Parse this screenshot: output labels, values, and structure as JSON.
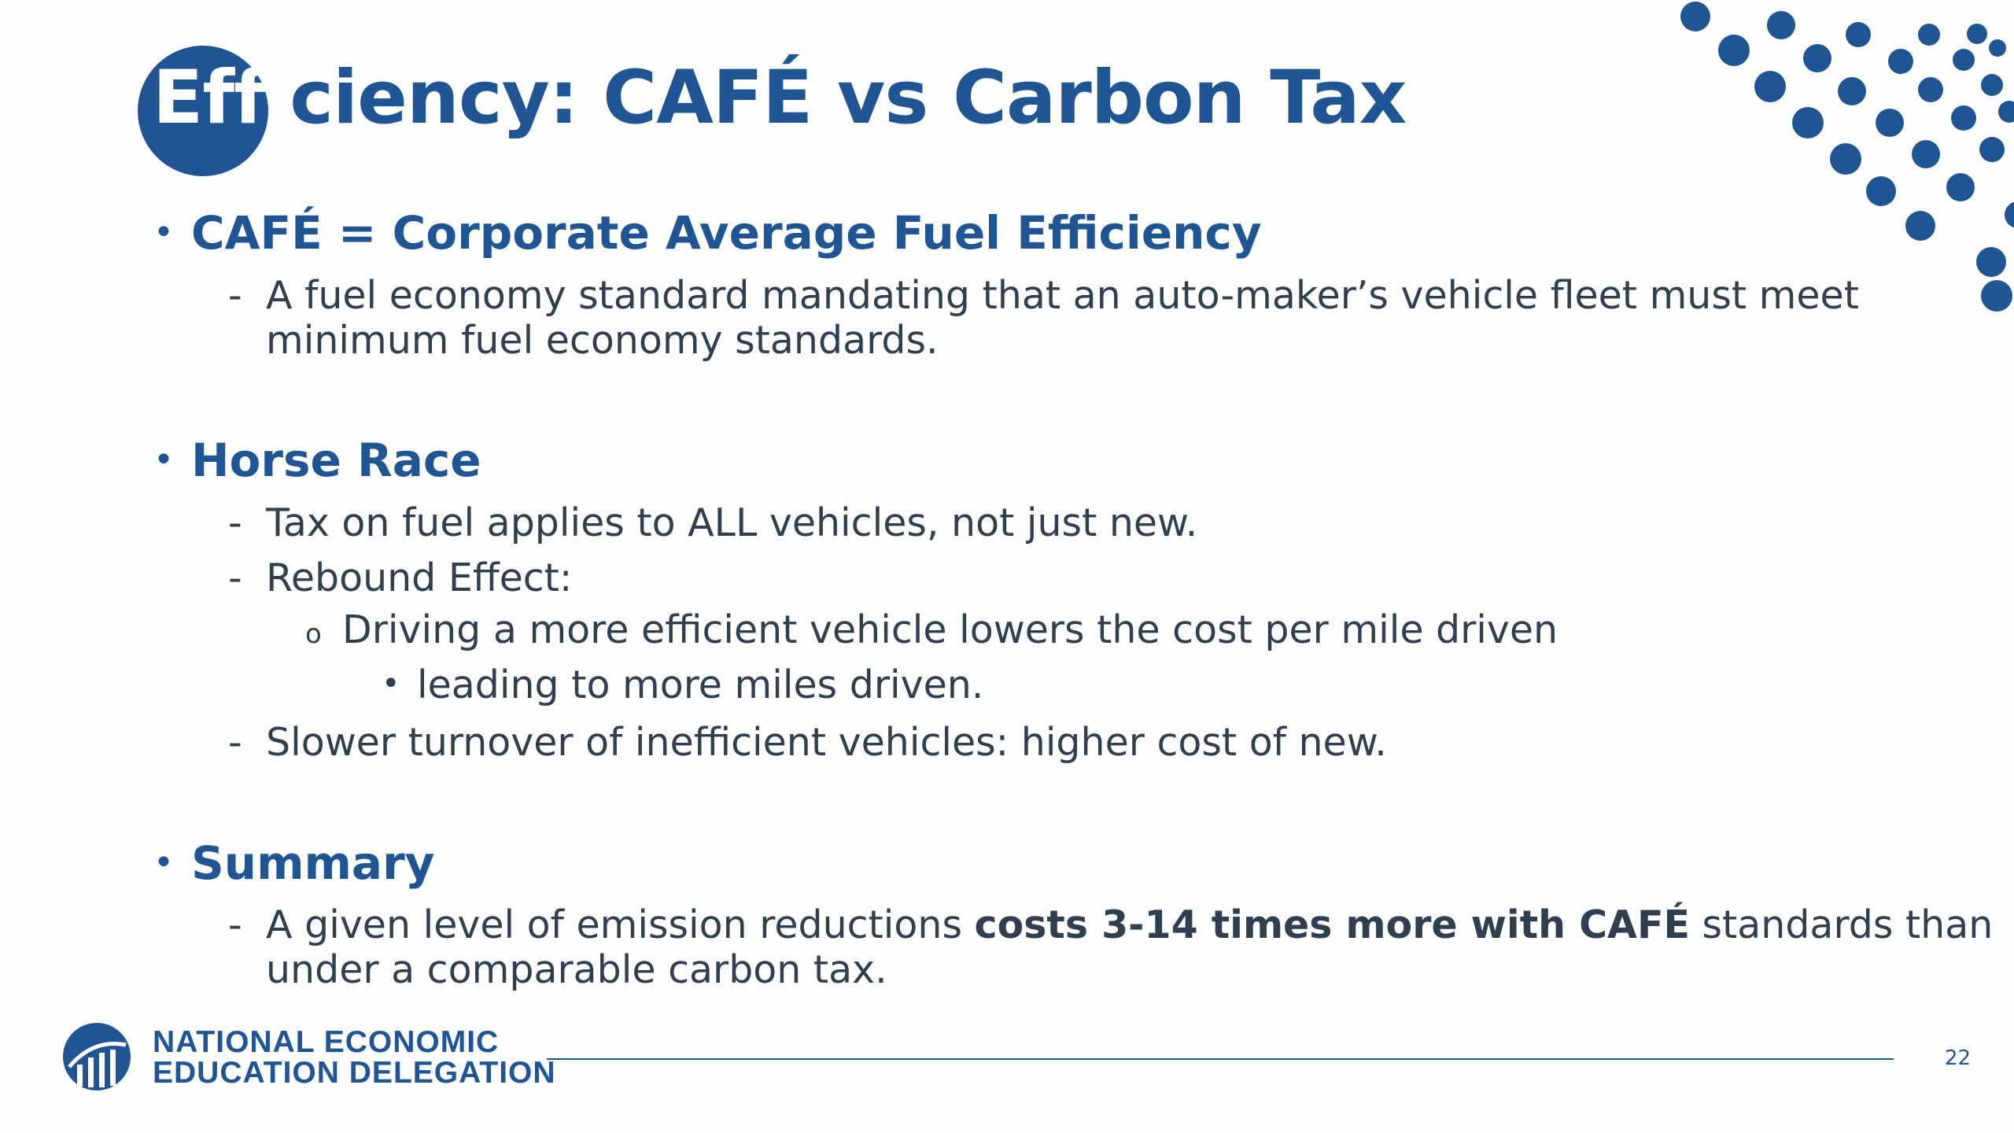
{
  "slide": {
    "title_first": "Effi",
    "title_rest": "ciency: CAFÉ vs Carbon Tax",
    "sections": [
      {
        "heading": "CAFÉ = Corporate Average Fuel Efficiency",
        "items": [
          {
            "line1": "A fuel economy standard mandating that an auto-maker’s vehicle fleet must meet",
            "line2": "minimum fuel economy standards."
          }
        ]
      },
      {
        "heading": "Horse Race",
        "items": [
          {
            "text": "Tax on fuel applies to ALL vehicles, not just new."
          },
          {
            "text": "Rebound Effect:"
          },
          {
            "sub": "Driving a more efficient vehicle lowers the cost per mile driven"
          },
          {
            "subsub": "leading to more miles driven."
          },
          {
            "text": "Slower turnover of inefficient vehicles: higher cost of new."
          }
        ]
      },
      {
        "heading": "Summary",
        "items": [
          {
            "pre": "A given level of emission reductions ",
            "bold": "costs 3-14 times more with CAFÉ",
            "post": " standards than",
            "line2": "under a comparable carbon tax."
          }
        ]
      }
    ],
    "markers": {
      "l1": "•",
      "l2": "-",
      "l3": "o",
      "l4": "•"
    }
  },
  "footer": {
    "org_line1": "NATIONAL ECONOMIC",
    "org_line2": "EDUCATION DELEGATION",
    "page_number": "22"
  },
  "colors": {
    "brand_blue": "#1f5594",
    "body_text": "#2f3f50"
  }
}
